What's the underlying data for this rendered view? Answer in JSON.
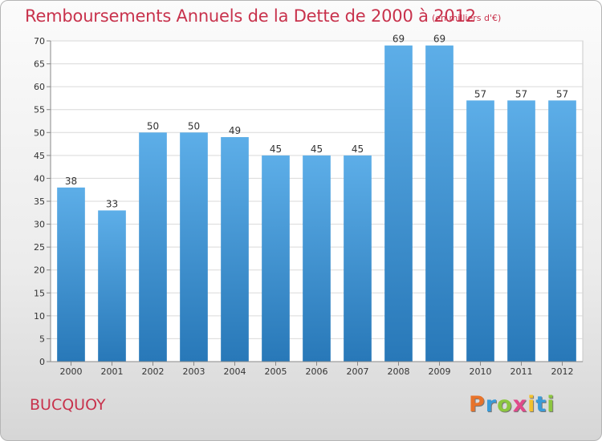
{
  "chart_data": {
    "type": "bar",
    "title": "Remboursements Annuels de la Dette de 2000 à 2012",
    "subtitle": "(en milliers d'€)",
    "categories": [
      "2000",
      "2001",
      "2002",
      "2003",
      "2004",
      "2005",
      "2006",
      "2007",
      "2008",
      "2009",
      "2010",
      "2011",
      "2012"
    ],
    "values": [
      38,
      33,
      50,
      50,
      49,
      45,
      45,
      45,
      69,
      69,
      57,
      57,
      57
    ],
    "ylim": [
      0,
      70
    ],
    "yticks": [
      0,
      5,
      10,
      15,
      20,
      25,
      30,
      35,
      40,
      45,
      50,
      55,
      60,
      65,
      70
    ],
    "grid": true,
    "bar_color_top": "#5daee8",
    "bar_color_bottom": "#2878b8"
  },
  "footer": {
    "commune": "BUCQUOY",
    "logo_letters": [
      "P",
      "r",
      "o",
      "x",
      "i",
      "t",
      "i"
    ],
    "logo_colors": [
      "#e8732a",
      "#3a9bd8",
      "#8cc63f",
      "#e04a8a",
      "#f2c12e",
      "#3a9bd8",
      "#8cc63f"
    ]
  }
}
